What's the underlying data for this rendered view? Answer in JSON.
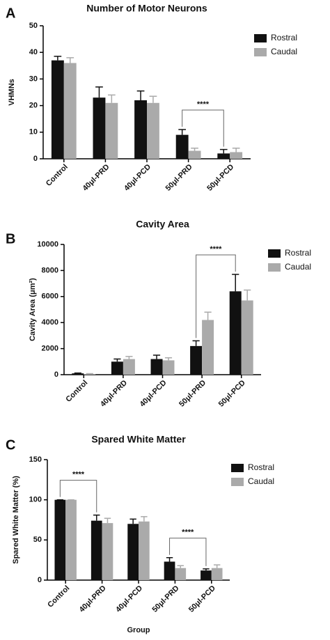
{
  "chart_data": [
    {
      "type": "bar",
      "panel_label": "A",
      "title": "Number of  Motor Neurons",
      "y_label": "VHMNs",
      "categories": [
        "Control",
        "40μl-PRD",
        "40μl-PCD",
        "50μl-PRD",
        "50μl-PCD"
      ],
      "series": [
        {
          "name": "Rostral",
          "color": "#111111",
          "values": [
            37,
            23,
            22,
            9,
            2
          ],
          "errors": [
            1.5,
            4,
            3.5,
            2,
            1.5
          ]
        },
        {
          "name": "Caudal",
          "color": "#aaaaaa",
          "values": [
            36,
            21,
            21,
            3,
            2.5
          ],
          "errors": [
            2,
            3,
            2.5,
            1,
            1.5
          ]
        }
      ],
      "ylim": [
        0,
        50
      ],
      "yticks": [
        0,
        10,
        20,
        30,
        40,
        50
      ],
      "grid": false,
      "legend": "top-right",
      "significance": [
        {
          "from": "50μl-PRD",
          "to": "50μl-PCD",
          "label": "****"
        }
      ]
    },
    {
      "type": "bar",
      "panel_label": "B",
      "title": "Cavity Area",
      "y_label": "Cavity Area (μm²)",
      "categories": [
        "Control",
        "40μl-PRD",
        "40μl-PCD",
        "50μl-PRD",
        "50μl-PCD"
      ],
      "series": [
        {
          "name": "Rostral",
          "color": "#111111",
          "values": [
            100,
            1000,
            1200,
            2200,
            6400
          ],
          "errors": [
            30,
            200,
            300,
            400,
            1300
          ]
        },
        {
          "name": "Caudal",
          "color": "#aaaaaa",
          "values": [
            50,
            1200,
            1100,
            4200,
            5700
          ],
          "errors": [
            30,
            200,
            200,
            600,
            800
          ]
        }
      ],
      "ylim": [
        0,
        10000
      ],
      "yticks": [
        0,
        2000,
        4000,
        6000,
        8000,
        10000
      ],
      "grid": false,
      "legend": "top-right",
      "significance": [
        {
          "from": "50μl-PRD",
          "to": "50μl-PCD",
          "label": "****"
        }
      ]
    },
    {
      "type": "bar",
      "panel_label": "C",
      "title": "Spared White Matter",
      "y_label": "Spared White Matter (%)",
      "x_label": "Group",
      "categories": [
        "Control",
        "40μl-PRD",
        "40μl-PCD",
        "50μl-PRD",
        "50μl-PCD"
      ],
      "series": [
        {
          "name": "Rostral",
          "color": "#111111",
          "values": [
            100,
            74,
            70,
            23,
            12
          ],
          "errors": [
            0,
            7,
            6,
            5,
            2
          ]
        },
        {
          "name": "Caudal",
          "color": "#aaaaaa",
          "values": [
            100,
            71,
            73,
            15,
            15
          ],
          "errors": [
            0,
            6,
            6,
            3,
            4
          ]
        }
      ],
      "ylim": [
        0,
        150
      ],
      "yticks": [
        0,
        50,
        100,
        150
      ],
      "grid": false,
      "legend": "top-right",
      "significance": [
        {
          "from": "Control",
          "to": "40μl-PRD",
          "label": "****"
        },
        {
          "from": "50μl-PRD",
          "to": "50μl-PCD",
          "label": "****"
        }
      ]
    }
  ]
}
